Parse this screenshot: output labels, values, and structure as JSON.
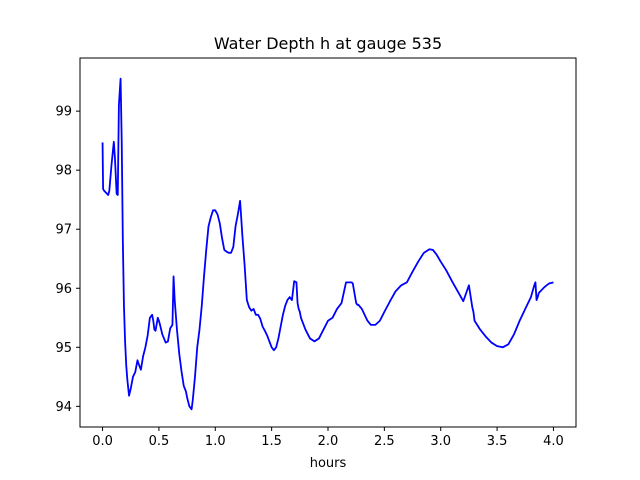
{
  "chart_data": {
    "type": "line",
    "title": "Water Depth h at gauge 535",
    "xlabel": "hours",
    "ylabel": "",
    "xlim": [
      -0.2,
      4.2
    ],
    "ylim": [
      93.65,
      99.9
    ],
    "xticks": [
      0.0,
      0.5,
      1.0,
      1.5,
      2.0,
      2.5,
      3.0,
      3.5,
      4.0
    ],
    "xtick_labels": [
      "0.0",
      "0.5",
      "1.0",
      "1.5",
      "2.0",
      "2.5",
      "3.0",
      "3.5",
      "4.0"
    ],
    "yticks": [
      94,
      95,
      96,
      97,
      98,
      99
    ],
    "ytick_labels": [
      "94",
      "95",
      "96",
      "97",
      "98",
      "99"
    ],
    "grid": false,
    "series_color": "#0000ff",
    "series": [
      {
        "x": [
          0.0,
          0.005,
          0.015,
          0.03,
          0.05,
          0.06,
          0.08,
          0.1,
          0.11,
          0.125,
          0.135,
          0.145,
          0.16,
          0.17,
          0.18,
          0.19,
          0.2,
          0.21,
          0.22,
          0.235,
          0.25,
          0.27,
          0.29,
          0.31,
          0.32,
          0.34,
          0.36,
          0.38,
          0.4,
          0.42,
          0.44,
          0.45,
          0.46,
          0.47,
          0.49,
          0.5,
          0.51,
          0.53,
          0.56,
          0.58,
          0.6,
          0.62,
          0.63,
          0.64,
          0.66,
          0.68,
          0.7,
          0.72,
          0.74,
          0.75,
          0.77,
          0.79,
          0.8,
          0.82,
          0.84,
          0.86,
          0.88,
          0.9,
          0.92,
          0.94,
          0.96,
          0.98,
          1.0,
          1.02,
          1.04,
          1.06,
          1.08,
          1.1,
          1.12,
          1.14,
          1.16,
          1.18,
          1.2,
          1.22,
          1.23,
          1.24,
          1.26,
          1.28,
          1.3,
          1.32,
          1.34,
          1.36,
          1.38,
          1.4,
          1.42,
          1.44,
          1.46,
          1.48,
          1.5,
          1.52,
          1.54,
          1.56,
          1.58,
          1.6,
          1.62,
          1.64,
          1.66,
          1.68,
          1.7,
          1.72,
          1.73,
          1.74,
          1.75,
          1.76,
          1.8,
          1.84,
          1.88,
          1.92,
          1.96,
          2.0,
          2.04,
          2.08,
          2.12,
          2.16,
          2.2,
          2.21,
          2.22,
          2.25,
          2.26,
          2.27,
          2.3,
          2.35,
          2.38,
          2.42,
          2.46,
          2.5,
          2.55,
          2.6,
          2.65,
          2.7,
          2.75,
          2.8,
          2.85,
          2.9,
          2.93,
          2.96,
          3.0,
          3.05,
          3.1,
          3.15,
          3.2,
          3.25,
          3.28,
          3.29,
          3.3,
          3.35,
          3.4,
          3.45,
          3.5,
          3.55,
          3.6,
          3.65,
          3.7,
          3.75,
          3.8,
          3.83,
          3.84,
          3.85,
          3.86,
          3.87,
          3.9,
          3.92,
          3.94,
          3.96,
          4.0
        ],
        "y": [
          98.47,
          97.68,
          97.65,
          97.62,
          97.58,
          97.65,
          98.1,
          98.48,
          98.2,
          97.6,
          97.58,
          99.1,
          99.55,
          98.5,
          96.8,
          95.7,
          95.1,
          94.7,
          94.45,
          94.18,
          94.3,
          94.5,
          94.58,
          94.78,
          94.72,
          94.62,
          94.85,
          95.0,
          95.2,
          95.5,
          95.55,
          95.45,
          95.3,
          95.28,
          95.5,
          95.45,
          95.38,
          95.22,
          95.08,
          95.1,
          95.32,
          95.38,
          96.2,
          95.8,
          95.3,
          94.9,
          94.6,
          94.35,
          94.25,
          94.15,
          94.0,
          93.95,
          94.1,
          94.5,
          95.0,
          95.3,
          95.7,
          96.2,
          96.65,
          97.05,
          97.2,
          97.32,
          97.32,
          97.25,
          97.1,
          96.85,
          96.65,
          96.62,
          96.6,
          96.6,
          96.7,
          97.05,
          97.25,
          97.48,
          97.2,
          96.9,
          96.4,
          95.8,
          95.68,
          95.62,
          95.65,
          95.55,
          95.55,
          95.48,
          95.35,
          95.28,
          95.2,
          95.1,
          95.0,
          94.95,
          95.0,
          95.15,
          95.35,
          95.55,
          95.7,
          95.8,
          95.85,
          95.8,
          96.12,
          96.1,
          95.75,
          95.65,
          95.6,
          95.5,
          95.3,
          95.15,
          95.1,
          95.15,
          95.3,
          95.45,
          95.5,
          95.65,
          95.75,
          96.1,
          96.1,
          96.1,
          96.08,
          95.75,
          95.72,
          95.72,
          95.65,
          95.45,
          95.38,
          95.38,
          95.45,
          95.6,
          95.78,
          95.95,
          96.05,
          96.1,
          96.28,
          96.45,
          96.6,
          96.66,
          96.65,
          96.58,
          96.45,
          96.3,
          96.12,
          95.95,
          95.78,
          96.05,
          95.68,
          95.6,
          95.45,
          95.3,
          95.18,
          95.08,
          95.02,
          95.0,
          95.05,
          95.22,
          95.45,
          95.65,
          95.85,
          96.05,
          96.1,
          95.8,
          95.85,
          95.92,
          95.98,
          96.02,
          96.05,
          96.08,
          96.1
        ]
      }
    ]
  }
}
